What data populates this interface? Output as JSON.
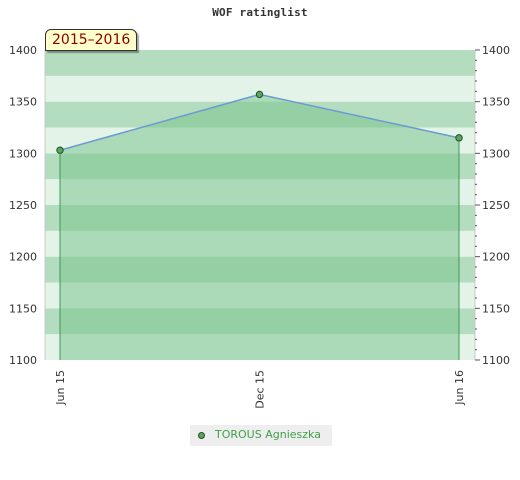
{
  "title": "WOF ratinglist",
  "period": "2015–2016",
  "chart_data": {
    "type": "area",
    "title": "WOF ratinglist",
    "x": [
      "Jun 15",
      "Dec 15",
      "Jun 16"
    ],
    "x_tick_labels": [
      "Jun 15",
      "Dec 15",
      "Jun 16"
    ],
    "series": [
      {
        "name": "TOROUS Agnieszka",
        "values": [
          1303,
          1357,
          1315
        ]
      }
    ],
    "ylim": [
      1100,
      1400
    ],
    "y_ticks": [
      1100,
      1150,
      1200,
      1250,
      1300,
      1350,
      1400
    ],
    "y_axis_both_sides": true,
    "grid": true,
    "legend": "bottom",
    "colors": {
      "line": "#6b9bd2",
      "area": "#7cc48e",
      "marker": "#5aa55a",
      "marker_border": "#1f4f2a",
      "band_dark": "#b4dcbf",
      "band_light": "#e3f3e8",
      "legend_text": "#3f9f48",
      "badge_bg": "#ffffcc",
      "badge_text": "#880000"
    }
  }
}
